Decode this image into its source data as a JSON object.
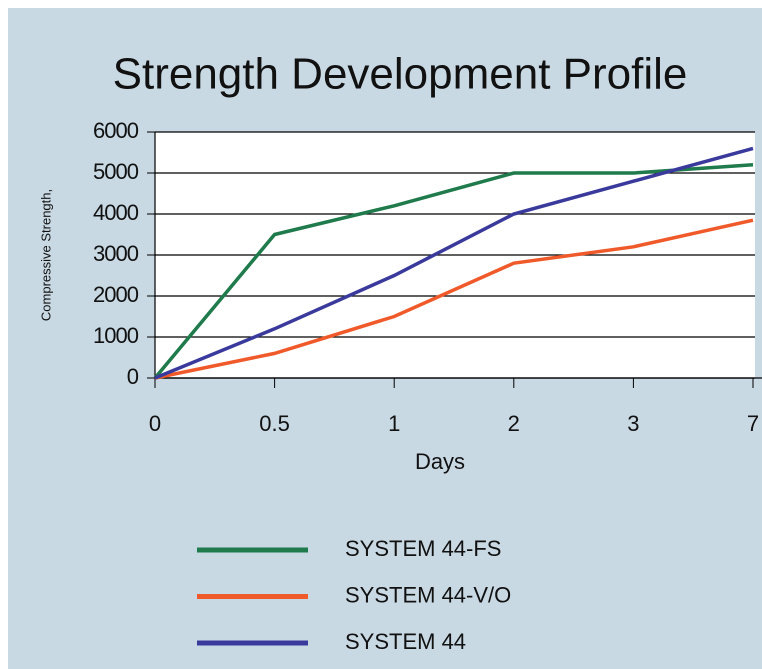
{
  "chart_data": {
    "type": "line",
    "title": "Strength Development Profile",
    "x_label": "Days",
    "y_label": "Compressive Strength,",
    "categories": [
      "0",
      "0.5",
      "1",
      "2",
      "3",
      "7"
    ],
    "series": [
      {
        "name": "SYSTEM 44-FS",
        "color": "#1f7a4c",
        "values": [
          0,
          3500,
          4200,
          5000,
          5000,
          5200
        ]
      },
      {
        "name": "SYSTEM 44-V/O",
        "color": "#f05a2a",
        "values": [
          0,
          600,
          1500,
          2800,
          3200,
          3850
        ]
      },
      {
        "name": "SYSTEM 44",
        "color": "#3a3a9c",
        "values": [
          0,
          1200,
          2500,
          4000,
          4800,
          5600
        ]
      }
    ],
    "ylim": [
      0,
      6000
    ],
    "yticks": [
      0,
      1000,
      2000,
      3000,
      4000,
      5000,
      6000
    ],
    "grid": true
  }
}
